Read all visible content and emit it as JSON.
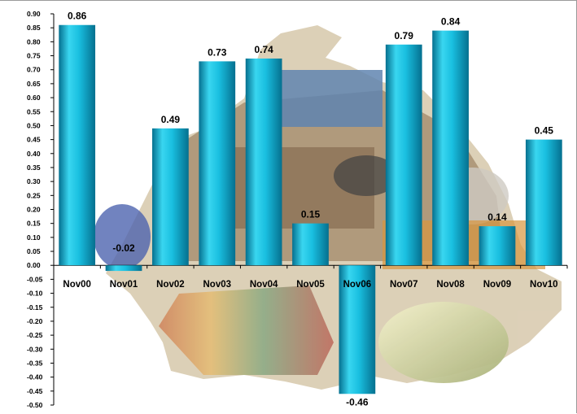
{
  "chart_data": {
    "type": "bar",
    "categories": [
      "Nov00",
      "Nov01",
      "Nov02",
      "Nov03",
      "Nov04",
      "Nov05",
      "Nov06",
      "Nov07",
      "Nov08",
      "Nov09",
      "Nov10"
    ],
    "values": [
      0.86,
      -0.02,
      0.49,
      0.73,
      0.74,
      0.15,
      -0.46,
      0.79,
      0.84,
      0.14,
      0.45
    ],
    "data_labels": [
      "0.86",
      "-0.02",
      "0.49",
      "0.73",
      "0.74",
      "0.15",
      "-0.46",
      "0.79",
      "0.84",
      "0.14",
      "0.45"
    ],
    "ylim": [
      -0.5,
      0.9
    ],
    "ytick_step": 0.05,
    "title": "",
    "xlabel": "",
    "ylabel": "",
    "grid": false,
    "legend": "none",
    "colors": {
      "bar_light": "#39d6f0",
      "bar_mid": "#0fb0d3",
      "bar_dark": "#05708f",
      "axis": "#000000"
    }
  }
}
